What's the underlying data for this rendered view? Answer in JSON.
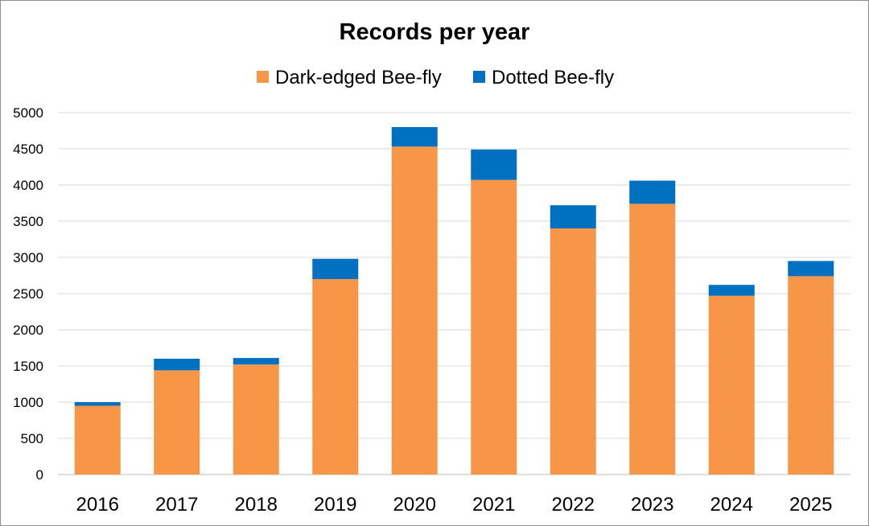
{
  "chart_data": {
    "type": "bar",
    "stacked": true,
    "title": "Records per year",
    "xlabel": "",
    "ylabel": "",
    "categories": [
      "2016",
      "2017",
      "2018",
      "2019",
      "2020",
      "2021",
      "2022",
      "2023",
      "2024",
      "2025"
    ],
    "series": [
      {
        "name": "Dark-edged Bee-fly",
        "color": "#f79646",
        "values": [
          950,
          1440,
          1520,
          2700,
          4530,
          4070,
          3400,
          3740,
          2470,
          2740
        ]
      },
      {
        "name": "Dotted Bee-fly",
        "color": "#0070c0",
        "values": [
          50,
          160,
          90,
          280,
          270,
          420,
          320,
          320,
          150,
          210
        ]
      }
    ],
    "ylim": [
      0,
      5000
    ],
    "yticks": [
      0,
      500,
      1000,
      1500,
      2000,
      2500,
      3000,
      3500,
      4000,
      4500,
      5000
    ],
    "grid": true,
    "legend_position": "top"
  }
}
